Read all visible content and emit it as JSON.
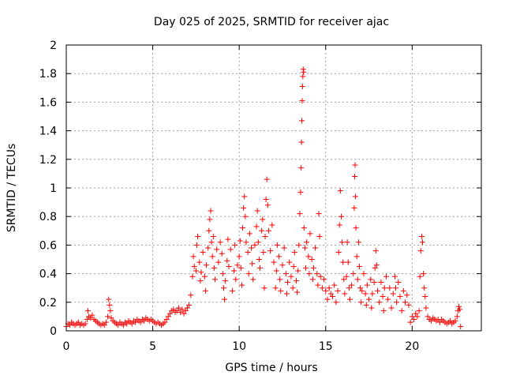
{
  "chart_data": {
    "type": "scatter",
    "title": "Day 025 of 2025, SRMTID for receiver ajac",
    "xlabel": "GPS time / hours",
    "ylabel": "SRMTID / TECUs",
    "xlim": [
      0,
      24
    ],
    "ylim": [
      0,
      2
    ],
    "xticks": [
      0,
      5,
      10,
      15,
      20
    ],
    "yticks": [
      0,
      0.2,
      0.4,
      0.6,
      0.8,
      1,
      1.2,
      1.4,
      1.6,
      1.8,
      2
    ],
    "xtick_labels": [
      "0",
      "5",
      "10",
      "15",
      "20"
    ],
    "ytick_labels": [
      "0",
      "0.2",
      "0.4",
      "0.6",
      "0.8",
      "1",
      "1.2",
      "1.4",
      "1.6",
      "1.8",
      "2"
    ],
    "grid": true,
    "marker": "+",
    "color": "#ff0000",
    "series": [
      {
        "name": "SRMTID",
        "points": [
          [
            0.0,
            0.03
          ],
          [
            0.1,
            0.05
          ],
          [
            0.2,
            0.04
          ],
          [
            0.3,
            0.06
          ],
          [
            0.4,
            0.05
          ],
          [
            0.5,
            0.04
          ],
          [
            0.6,
            0.05
          ],
          [
            0.7,
            0.06
          ],
          [
            0.8,
            0.04
          ],
          [
            0.9,
            0.05
          ],
          [
            1.0,
            0.04
          ],
          [
            1.1,
            0.05
          ],
          [
            1.2,
            0.08
          ],
          [
            1.25,
            0.14
          ],
          [
            1.3,
            0.1
          ],
          [
            1.4,
            0.09
          ],
          [
            1.5,
            0.11
          ],
          [
            1.6,
            0.08
          ],
          [
            1.7,
            0.07
          ],
          [
            1.8,
            0.06
          ],
          [
            1.9,
            0.05
          ],
          [
            2.0,
            0.04
          ],
          [
            2.1,
            0.05
          ],
          [
            2.2,
            0.04
          ],
          [
            2.3,
            0.06
          ],
          [
            2.4,
            0.1
          ],
          [
            2.45,
            0.22
          ],
          [
            2.5,
            0.18
          ],
          [
            2.55,
            0.14
          ],
          [
            2.6,
            0.09
          ],
          [
            2.7,
            0.07
          ],
          [
            2.8,
            0.06
          ],
          [
            2.9,
            0.05
          ],
          [
            3.0,
            0.04
          ],
          [
            3.1,
            0.06
          ],
          [
            3.2,
            0.05
          ],
          [
            3.3,
            0.04
          ],
          [
            3.4,
            0.06
          ],
          [
            3.5,
            0.05
          ],
          [
            3.6,
            0.07
          ],
          [
            3.7,
            0.06
          ],
          [
            3.8,
            0.05
          ],
          [
            3.9,
            0.07
          ],
          [
            4.0,
            0.06
          ],
          [
            4.1,
            0.08
          ],
          [
            4.2,
            0.07
          ],
          [
            4.3,
            0.06
          ],
          [
            4.4,
            0.08
          ],
          [
            4.5,
            0.07
          ],
          [
            4.6,
            0.09
          ],
          [
            4.7,
            0.08
          ],
          [
            4.8,
            0.07
          ],
          [
            4.9,
            0.08
          ],
          [
            5.0,
            0.07
          ],
          [
            5.1,
            0.06
          ],
          [
            5.2,
            0.05
          ],
          [
            5.3,
            0.06
          ],
          [
            5.4,
            0.05
          ],
          [
            5.5,
            0.04
          ],
          [
            5.6,
            0.05
          ],
          [
            5.7,
            0.06
          ],
          [
            5.8,
            0.08
          ],
          [
            5.9,
            0.1
          ],
          [
            6.0,
            0.12
          ],
          [
            6.1,
            0.14
          ],
          [
            6.2,
            0.15
          ],
          [
            6.3,
            0.13
          ],
          [
            6.4,
            0.14
          ],
          [
            6.5,
            0.16
          ],
          [
            6.6,
            0.13
          ],
          [
            6.7,
            0.15
          ],
          [
            6.8,
            0.12
          ],
          [
            6.9,
            0.14
          ],
          [
            7.0,
            0.16
          ],
          [
            7.1,
            0.18
          ],
          [
            7.2,
            0.25
          ],
          [
            7.3,
            0.38
          ],
          [
            7.35,
            0.52
          ],
          [
            7.4,
            0.45
          ],
          [
            7.5,
            0.42
          ],
          [
            7.55,
            0.6
          ],
          [
            7.6,
            0.66
          ],
          [
            7.7,
            0.48
          ],
          [
            7.75,
            0.35
          ],
          [
            7.8,
            0.41
          ],
          [
            7.9,
            0.55
          ],
          [
            8.0,
            0.38
          ],
          [
            8.05,
            0.28
          ],
          [
            8.1,
            0.46
          ],
          [
            8.2,
            0.58
          ],
          [
            8.25,
            0.7
          ],
          [
            8.3,
            0.78
          ],
          [
            8.35,
            0.84
          ],
          [
            8.4,
            0.62
          ],
          [
            8.45,
            0.52
          ],
          [
            8.5,
            0.66
          ],
          [
            8.55,
            0.44
          ],
          [
            8.6,
            0.36
          ],
          [
            8.7,
            0.57
          ],
          [
            8.8,
            0.48
          ],
          [
            8.9,
            0.62
          ],
          [
            9.0,
            0.54
          ],
          [
            9.05,
            0.4
          ],
          [
            9.1,
            0.3
          ],
          [
            9.15,
            0.22
          ],
          [
            9.2,
            0.35
          ],
          [
            9.3,
            0.49
          ],
          [
            9.35,
            0.64
          ],
          [
            9.4,
            0.45
          ],
          [
            9.5,
            0.57
          ],
          [
            9.6,
            0.28
          ],
          [
            9.7,
            0.42
          ],
          [
            9.75,
            0.6
          ],
          [
            9.8,
            0.36
          ],
          [
            9.9,
            0.46
          ],
          [
            10.0,
            0.52
          ],
          [
            10.05,
            0.63
          ],
          [
            10.1,
            0.44
          ],
          [
            10.15,
            0.32
          ],
          [
            10.2,
            0.72
          ],
          [
            10.25,
            0.86
          ],
          [
            10.3,
            0.94
          ],
          [
            10.35,
            0.8
          ],
          [
            10.4,
            0.62
          ],
          [
            10.5,
            0.55
          ],
          [
            10.55,
            0.4
          ],
          [
            10.6,
            0.68
          ],
          [
            10.7,
            0.58
          ],
          [
            10.75,
            0.47
          ],
          [
            10.8,
            0.36
          ],
          [
            10.9,
            0.6
          ],
          [
            11.0,
            0.73
          ],
          [
            11.05,
            0.84
          ],
          [
            11.1,
            0.62
          ],
          [
            11.15,
            0.5
          ],
          [
            11.2,
            0.44
          ],
          [
            11.3,
            0.7
          ],
          [
            11.35,
            0.78
          ],
          [
            11.4,
            0.55
          ],
          [
            11.45,
            0.3
          ],
          [
            11.5,
            0.66
          ],
          [
            11.55,
            0.92
          ],
          [
            11.6,
            1.06
          ],
          [
            11.65,
            0.88
          ],
          [
            11.7,
            0.7
          ],
          [
            11.8,
            0.56
          ],
          [
            11.9,
            0.74
          ],
          [
            12.0,
            0.48
          ],
          [
            12.1,
            0.3
          ],
          [
            12.15,
            0.42
          ],
          [
            12.2,
            0.6
          ],
          [
            12.3,
            0.52
          ],
          [
            12.35,
            0.36
          ],
          [
            12.4,
            0.28
          ],
          [
            12.5,
            0.46
          ],
          [
            12.6,
            0.58
          ],
          [
            12.7,
            0.4
          ],
          [
            12.75,
            0.26
          ],
          [
            12.8,
            0.34
          ],
          [
            12.9,
            0.48
          ],
          [
            13.0,
            0.38
          ],
          [
            13.1,
            0.3
          ],
          [
            13.15,
            0.45
          ],
          [
            13.2,
            0.55
          ],
          [
            13.3,
            0.35
          ],
          [
            13.35,
            0.27
          ],
          [
            13.4,
            0.42
          ],
          [
            13.45,
            0.6
          ],
          [
            13.5,
            0.82
          ],
          [
            13.55,
            0.97
          ],
          [
            13.58,
            1.14
          ],
          [
            13.6,
            1.32
          ],
          [
            13.62,
            1.47
          ],
          [
            13.64,
            1.61
          ],
          [
            13.66,
            1.71
          ],
          [
            13.68,
            1.78
          ],
          [
            13.7,
            1.83
          ],
          [
            13.72,
            1.81
          ],
          [
            13.75,
            0.72
          ],
          [
            13.8,
            0.58
          ],
          [
            13.85,
            0.44
          ],
          [
            13.9,
            0.62
          ],
          [
            14.0,
            0.52
          ],
          [
            14.05,
            0.4
          ],
          [
            14.1,
            0.68
          ],
          [
            14.2,
            0.5
          ],
          [
            14.25,
            0.36
          ],
          [
            14.3,
            0.44
          ],
          [
            14.4,
            0.58
          ],
          [
            14.5,
            0.4
          ],
          [
            14.55,
            0.32
          ],
          [
            14.6,
            0.82
          ],
          [
            14.65,
            0.66
          ],
          [
            14.7,
            0.38
          ],
          [
            14.8,
            0.3
          ],
          [
            14.9,
            0.36
          ],
          [
            15.0,
            0.28
          ],
          [
            15.1,
            0.22
          ],
          [
            15.2,
            0.3
          ],
          [
            15.3,
            0.26
          ],
          [
            15.4,
            0.24
          ],
          [
            15.5,
            0.32
          ],
          [
            15.6,
            0.2
          ],
          [
            15.7,
            0.28
          ],
          [
            15.75,
            0.55
          ],
          [
            15.8,
            0.74
          ],
          [
            15.85,
            0.98
          ],
          [
            15.9,
            0.8
          ],
          [
            15.95,
            0.62
          ],
          [
            16.0,
            0.48
          ],
          [
            16.05,
            0.36
          ],
          [
            16.1,
            0.26
          ],
          [
            16.2,
            0.38
          ],
          [
            16.25,
            0.62
          ],
          [
            16.3,
            0.48
          ],
          [
            16.35,
            0.3
          ],
          [
            16.4,
            0.22
          ],
          [
            16.5,
            0.32
          ],
          [
            16.6,
            0.4
          ],
          [
            16.65,
            0.86
          ],
          [
            16.68,
            1.08
          ],
          [
            16.7,
            1.16
          ],
          [
            16.72,
            0.94
          ],
          [
            16.75,
            0.72
          ],
          [
            16.8,
            0.52
          ],
          [
            16.85,
            0.36
          ],
          [
            16.9,
            0.62
          ],
          [
            16.95,
            0.45
          ],
          [
            17.0,
            0.3
          ],
          [
            17.05,
            0.2
          ],
          [
            17.1,
            0.28
          ],
          [
            17.2,
            0.4
          ],
          [
            17.3,
            0.26
          ],
          [
            17.35,
            0.18
          ],
          [
            17.4,
            0.32
          ],
          [
            17.5,
            0.22
          ],
          [
            17.6,
            0.36
          ],
          [
            17.65,
            0.16
          ],
          [
            17.7,
            0.26
          ],
          [
            17.8,
            0.34
          ],
          [
            17.85,
            0.44
          ],
          [
            17.9,
            0.56
          ],
          [
            17.95,
            0.46
          ],
          [
            18.0,
            0.28
          ],
          [
            18.1,
            0.2
          ],
          [
            18.2,
            0.34
          ],
          [
            18.3,
            0.24
          ],
          [
            18.35,
            0.14
          ],
          [
            18.4,
            0.3
          ],
          [
            18.5,
            0.38
          ],
          [
            18.6,
            0.22
          ],
          [
            18.7,
            0.3
          ],
          [
            18.8,
            0.16
          ],
          [
            18.9,
            0.26
          ],
          [
            19.0,
            0.38
          ],
          [
            19.05,
            0.3
          ],
          [
            19.1,
            0.2
          ],
          [
            19.2,
            0.34
          ],
          [
            19.3,
            0.24
          ],
          [
            19.4,
            0.14
          ],
          [
            19.5,
            0.28
          ],
          [
            19.6,
            0.2
          ],
          [
            19.7,
            0.25
          ],
          [
            19.8,
            0.18
          ],
          [
            19.9,
            0.06
          ],
          [
            20.0,
            0.1
          ],
          [
            20.1,
            0.08
          ],
          [
            20.2,
            0.12
          ],
          [
            20.3,
            0.1
          ],
          [
            20.4,
            0.14
          ],
          [
            20.45,
            0.38
          ],
          [
            20.5,
            0.56
          ],
          [
            20.55,
            0.66
          ],
          [
            20.6,
            0.62
          ],
          [
            20.65,
            0.4
          ],
          [
            20.7,
            0.3
          ],
          [
            20.75,
            0.24
          ],
          [
            20.8,
            0.16
          ],
          [
            20.9,
            0.1
          ],
          [
            21.0,
            0.08
          ],
          [
            21.1,
            0.07
          ],
          [
            21.2,
            0.09
          ],
          [
            21.3,
            0.08
          ],
          [
            21.4,
            0.07
          ],
          [
            21.5,
            0.08
          ],
          [
            21.6,
            0.06
          ],
          [
            21.7,
            0.08
          ],
          [
            21.8,
            0.07
          ],
          [
            21.9,
            0.06
          ],
          [
            22.0,
            0.05
          ],
          [
            22.1,
            0.06
          ],
          [
            22.2,
            0.07
          ],
          [
            22.3,
            0.05
          ],
          [
            22.4,
            0.06
          ],
          [
            22.5,
            0.07
          ],
          [
            22.6,
            0.1
          ],
          [
            22.65,
            0.14
          ],
          [
            22.7,
            0.17
          ],
          [
            22.75,
            0.15
          ],
          [
            22.8,
            0.03
          ]
        ]
      }
    ]
  }
}
